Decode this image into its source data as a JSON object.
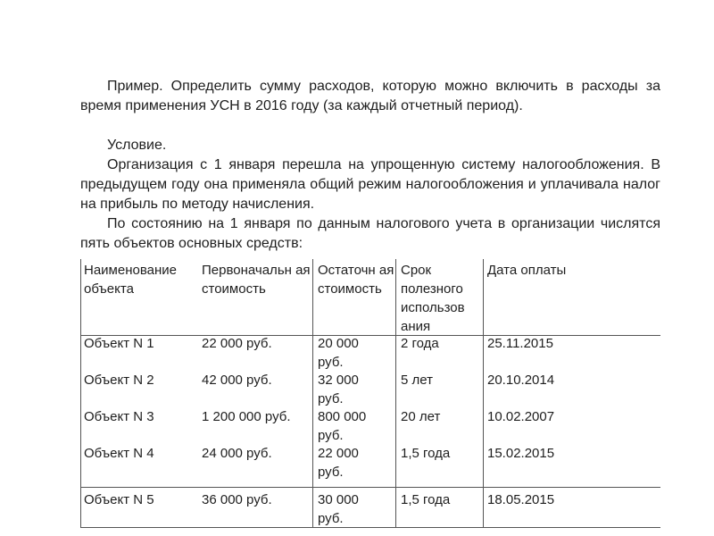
{
  "paragraphs": {
    "example": "Пример. Определить сумму расходов, которую можно включить в расходы за время применения УСН в 2016 году (за каждый отчетный период).",
    "condition": "Условие.",
    "organization": "Организация с 1 января перешла на упрощенную систему налогообложения. В предыдущем году она применяла общий режим налогообложения и уплачивала налог на прибыль по методу начисления.",
    "state": "По состоянию на 1 января по данным налогового учета в организации числятся пять объектов основных средств:"
  },
  "table": {
    "headers": [
      "Наименование объекта",
      "Первоначальн ая стоимость",
      "Остаточн ая стоимость",
      "Срок полезного использов ания",
      "Дата оплаты"
    ],
    "rows": [
      [
        "Объект N 1",
        "22 000 руб.",
        "20 000 руб.",
        "2 года",
        "25.11.2015"
      ],
      [
        "Объект N 2",
        "42 000 руб.",
        "32 000 руб.",
        "5 лет",
        "20.10.2014"
      ],
      [
        "Объект N 3",
        "1 200 000 руб.",
        "800 000 руб.",
        "20 лет",
        "10.02.2007"
      ],
      [
        "Объект N 4",
        "24 000 руб.",
        "22 000 руб.",
        "1,5 года",
        "15.02.2015"
      ],
      [
        "Объект N 5",
        "36 000 руб.",
        "30 000 руб.",
        "1,5 года",
        "18.05.2015"
      ]
    ]
  }
}
